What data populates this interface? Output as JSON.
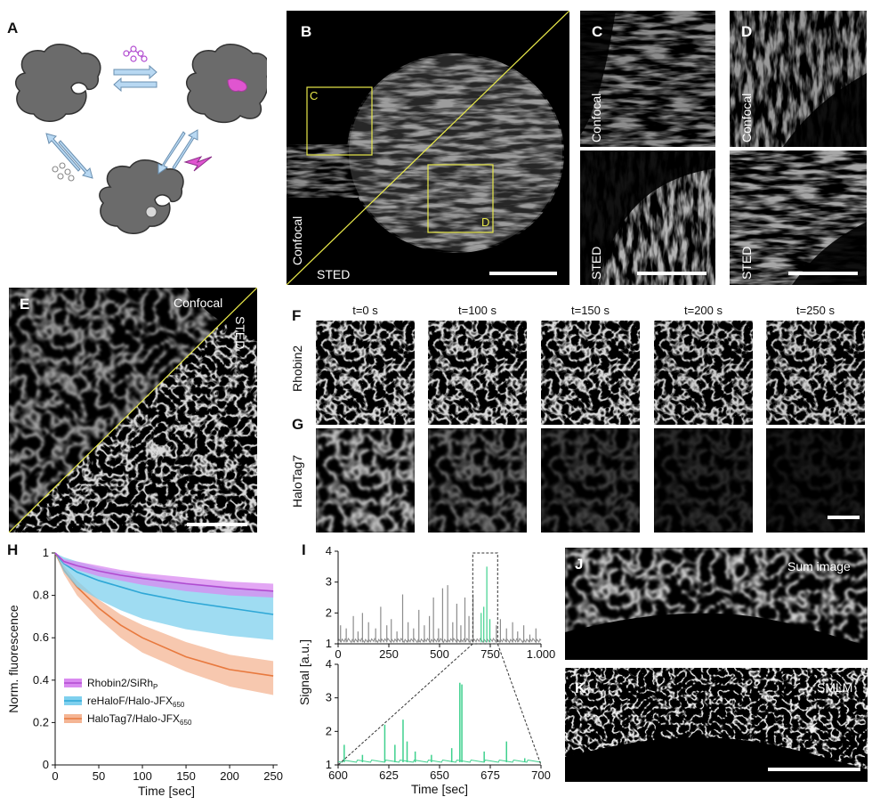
{
  "panels": {
    "A": {
      "label": "A"
    },
    "B": {
      "label": "B",
      "roi_c": "C",
      "roi_d": "D",
      "confocal": "Confocal",
      "sted": "STED"
    },
    "C": {
      "label": "C",
      "confocal": "Confocal",
      "sted": "STED"
    },
    "D": {
      "label": "D",
      "confocal": "Confocal",
      "sted": "STED"
    },
    "E": {
      "label": "E",
      "confocal": "Confocal",
      "sted": "STED"
    },
    "F": {
      "label": "F",
      "row": "Rhobin2"
    },
    "G": {
      "label": "G",
      "row": "HaloTag7"
    },
    "timepoints": [
      "t=0 s",
      "t=100 s",
      "t=150 s",
      "t=200 s",
      "t=250 s"
    ],
    "J": {
      "label": "J",
      "caption": "Sum image"
    },
    "K": {
      "label": "K",
      "caption": "SMLM"
    }
  },
  "chart_data": [
    {
      "panel": "H",
      "type": "line",
      "xlabel": "Time [sec]",
      "ylabel": "Norm. fluorescence",
      "xlim": [
        0,
        255
      ],
      "ylim": [
        0,
        1
      ],
      "xticks": [
        "0",
        "50",
        "100",
        "150",
        "200",
        "250"
      ],
      "yticks": [
        "0",
        "0.2",
        "0.4",
        "0.6",
        "0.8",
        "1"
      ],
      "legend_position": "bottom-left",
      "series": [
        {
          "name": "Rhobin2/SiRh",
          "subscript": "P",
          "color": "#b14bd0",
          "fill": "#d98af0",
          "x": [
            0,
            10,
            25,
            50,
            75,
            100,
            150,
            200,
            250
          ],
          "y": [
            1.0,
            0.96,
            0.94,
            0.915,
            0.895,
            0.88,
            0.855,
            0.835,
            0.82
          ],
          "y_low": [
            1.0,
            0.95,
            0.92,
            0.89,
            0.87,
            0.85,
            0.82,
            0.8,
            0.79
          ],
          "y_high": [
            1.0,
            0.97,
            0.96,
            0.94,
            0.92,
            0.905,
            0.885,
            0.865,
            0.855
          ]
        },
        {
          "name": "reHaloF/Halo-JFX",
          "subscript": "650",
          "color": "#2ea7d6",
          "fill": "#7fd0ee",
          "x": [
            0,
            10,
            25,
            50,
            75,
            100,
            150,
            200,
            250
          ],
          "y": [
            1.0,
            0.95,
            0.91,
            0.87,
            0.84,
            0.81,
            0.77,
            0.74,
            0.71
          ],
          "y_low": [
            1.0,
            0.91,
            0.84,
            0.78,
            0.73,
            0.69,
            0.64,
            0.61,
            0.59
          ],
          "y_high": [
            1.0,
            0.98,
            0.96,
            0.93,
            0.91,
            0.89,
            0.86,
            0.84,
            0.82
          ]
        },
        {
          "name": "HaloTag7/Halo-JFX",
          "subscript": "650",
          "color": "#e8793e",
          "fill": "#f4b594",
          "x": [
            0,
            10,
            25,
            50,
            75,
            100,
            150,
            200,
            250
          ],
          "y": [
            1.0,
            0.92,
            0.84,
            0.74,
            0.66,
            0.6,
            0.51,
            0.45,
            0.42
          ],
          "y_low": [
            1.0,
            0.9,
            0.8,
            0.69,
            0.6,
            0.53,
            0.44,
            0.37,
            0.33
          ],
          "y_high": [
            1.0,
            0.94,
            0.87,
            0.78,
            0.71,
            0.66,
            0.58,
            0.52,
            0.49
          ]
        }
      ]
    },
    {
      "panel": "I",
      "type": "line",
      "ylabel": "Signal [a.u.]",
      "top": {
        "xlim": [
          0,
          1000
        ],
        "ylim": [
          1,
          4
        ],
        "xticks": [
          "0",
          "250",
          "500",
          "750",
          "1.000"
        ],
        "yticks": [
          "1",
          "2",
          "3",
          "4"
        ],
        "highlight_range": [
          690,
          760
        ],
        "line_color": "#8c8c8c",
        "highlight_color": "#3fd18e",
        "spikes_x": [
          12,
          40,
          75,
          98,
          120,
          150,
          185,
          210,
          240,
          262,
          290,
          318,
          345,
          372,
          398,
          425,
          450,
          470,
          495,
          515,
          540,
          565,
          585,
          605,
          625,
          645,
          665,
          705,
          718,
          733,
          748,
          780,
          800,
          830,
          860,
          885,
          915,
          945,
          975
        ],
        "spikes_y": [
          1.6,
          1.5,
          1.9,
          1.4,
          2.0,
          1.7,
          1.5,
          2.2,
          1.6,
          1.8,
          1.4,
          2.6,
          1.7,
          1.5,
          2.1,
          1.6,
          1.9,
          2.5,
          1.5,
          2.8,
          2.9,
          1.7,
          2.3,
          1.6,
          2.5,
          1.9,
          2.6,
          2.0,
          2.2,
          3.5,
          1.8,
          1.6,
          1.8,
          1.5,
          1.7,
          1.4,
          1.6,
          1.3,
          1.5
        ]
      },
      "bottom": {
        "xlabel": "Time [sec]",
        "xlim": [
          600,
          700
        ],
        "ylim": [
          1,
          4
        ],
        "xticks": [
          "600",
          "625",
          "650",
          "675",
          "700"
        ],
        "yticks": [
          "1",
          "2",
          "3",
          "4"
        ],
        "line_color": "#3fd18e",
        "spikes_x": [
          603,
          612,
          623,
          628,
          632,
          634,
          638,
          646,
          656,
          660,
          661,
          672,
          683,
          692
        ],
        "spikes_y": [
          1.6,
          1.3,
          2.2,
          1.6,
          2.35,
          1.7,
          1.4,
          1.3,
          1.5,
          3.45,
          3.4,
          1.4,
          1.7,
          1.2
        ]
      }
    }
  ]
}
